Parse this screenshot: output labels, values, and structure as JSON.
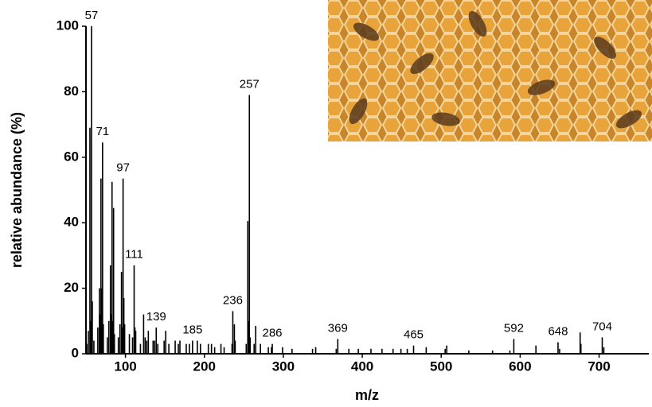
{
  "chart_data": {
    "type": "stem",
    "x_label": "m/z",
    "y_label": "relative abundance (%)",
    "xlim": [
      50,
      763
    ],
    "ylim": [
      0,
      100
    ],
    "xticks": [
      100,
      200,
      300,
      400,
      500,
      600,
      700
    ],
    "yticks": [
      0,
      20,
      40,
      60,
      80,
      100
    ],
    "series": [
      {
        "color": "#000000",
        "labels": true,
        "x": [
          57,
          71,
          97,
          111,
          139,
          185,
          236,
          257,
          286,
          369,
          465,
          592,
          648,
          704
        ],
        "values": [
          100,
          64.5,
          53.5,
          27,
          8,
          4,
          13,
          79,
          3,
          4.5,
          2.5,
          4.5,
          3.5,
          5
        ]
      },
      {
        "color": "#000000",
        "labels": false,
        "x": [
          51,
          53,
          55,
          56,
          58,
          60,
          65,
          67,
          68,
          69,
          70,
          72,
          77,
          79,
          81,
          82,
          83,
          84,
          85,
          86,
          91,
          93,
          95,
          96,
          98,
          99,
          105,
          109,
          112,
          113,
          119,
          123,
          125,
          127,
          129,
          135,
          137,
          141,
          149,
          151,
          155,
          163,
          167,
          169,
          177,
          181,
          191,
          195,
          205,
          209,
          213,
          221,
          225,
          235,
          238,
          239,
          253,
          255,
          256,
          258,
          263,
          265,
          271,
          281,
          285,
          299,
          311,
          337,
          341,
          367,
          383,
          395,
          411,
          425,
          439,
          449,
          457,
          481,
          505,
          507,
          535,
          565,
          587,
          620,
          650,
          676,
          677,
          706
        ],
        "values": [
          3,
          7,
          69,
          10,
          16,
          4,
          8,
          20,
          12,
          53.5,
          20,
          9,
          5,
          10,
          27,
          12,
          52.5,
          10,
          44.5,
          6,
          5,
          9,
          25,
          8,
          17,
          9,
          6,
          5,
          8,
          7,
          3,
          12,
          5,
          4,
          7,
          4,
          4,
          3,
          4,
          7,
          3,
          4,
          3,
          4,
          3,
          3,
          4,
          3,
          3,
          3,
          2,
          3,
          2,
          3,
          9,
          4,
          3,
          40.5,
          10,
          5,
          3,
          8.5,
          3,
          2,
          2,
          2,
          1.5,
          1.5,
          2,
          1.5,
          1.5,
          1.5,
          1.5,
          1.5,
          1.5,
          1.5,
          1.5,
          2,
          1.5,
          2.5,
          1,
          1,
          1,
          2.5,
          1.5,
          6.5,
          3,
          2
        ]
      }
    ]
  }
}
